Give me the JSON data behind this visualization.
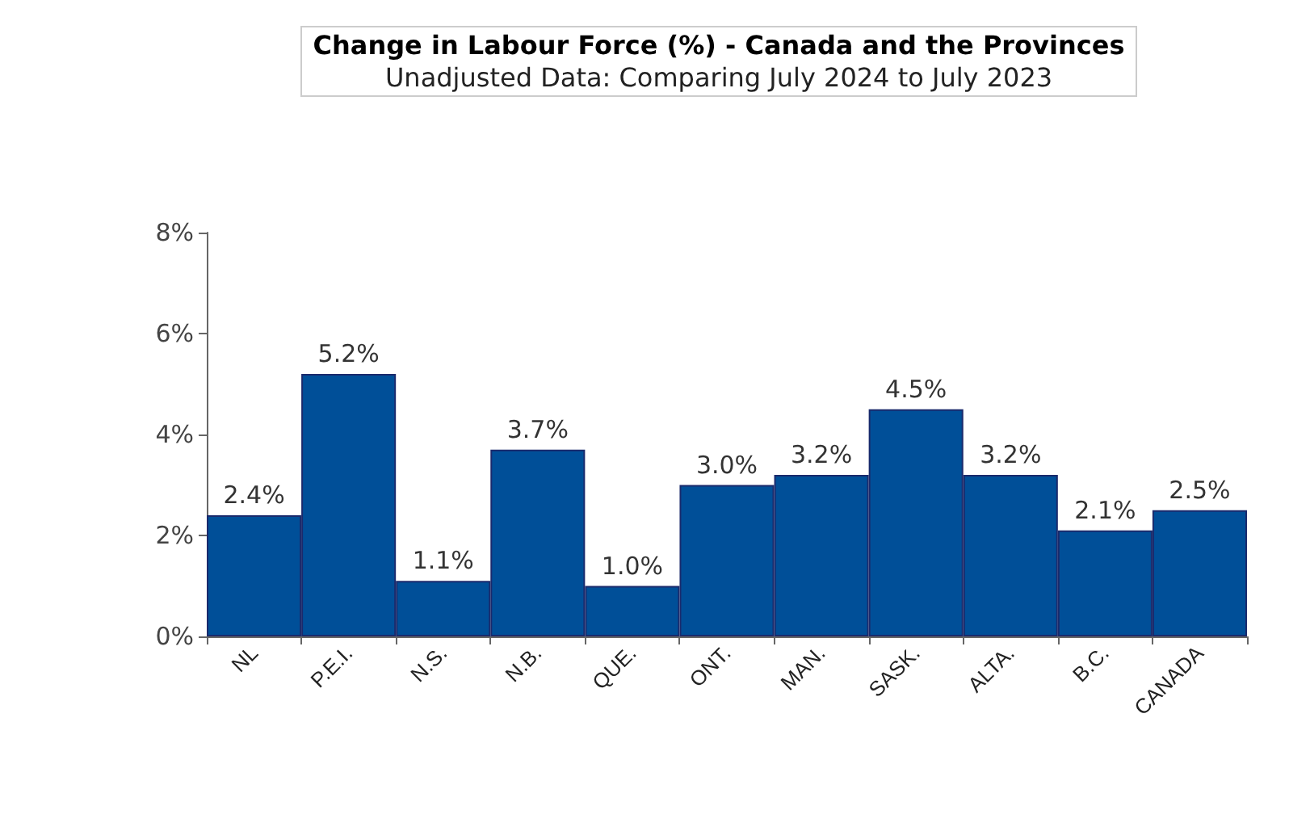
{
  "chart_data": {
    "type": "bar",
    "title": "Change in Labour Force (%) - Canada and the Provinces",
    "subtitle": "Unadjusted Data: Comparing July 2024 to July 2023",
    "categories": [
      "NL",
      "P.E.I.",
      "N.S.",
      "N.B.",
      "QUE.",
      "ONT.",
      "MAN.",
      "SASK.",
      "ALTA.",
      "B.C.",
      "CANADA"
    ],
    "values": [
      2.4,
      5.2,
      1.1,
      3.7,
      1.0,
      3.0,
      3.2,
      4.5,
      3.2,
      2.1,
      2.5
    ],
    "value_labels": [
      "2.4%",
      "5.2%",
      "1.1%",
      "3.7%",
      "1.0%",
      "3.0%",
      "3.2%",
      "4.5%",
      "3.2%",
      "2.1%",
      "2.5%"
    ],
    "color": "#004f98",
    "ylim": [
      0,
      8
    ],
    "yticks": [
      {
        "value": 0,
        "label": "0%"
      },
      {
        "value": 2,
        "label": "2%"
      },
      {
        "value": 4,
        "label": "4%"
      },
      {
        "value": 6,
        "label": "6%"
      },
      {
        "value": 8,
        "label": "8%"
      }
    ],
    "grid": false
  }
}
